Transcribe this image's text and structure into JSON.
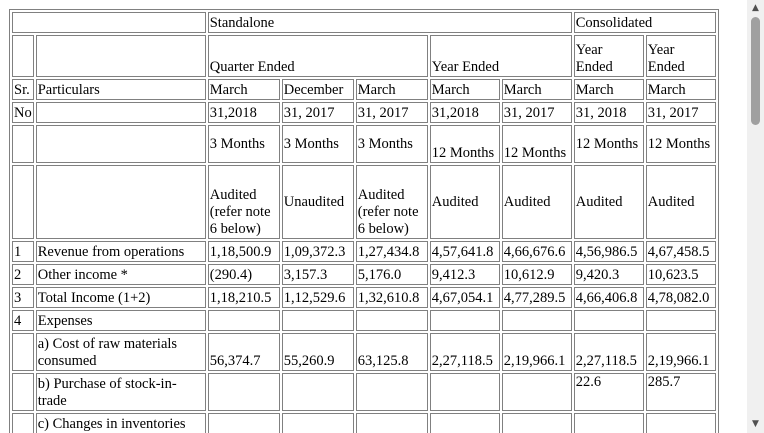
{
  "header": {
    "standalone": "Standalone",
    "consolidated": "Consolidated",
    "quarter_ended": "Quarter Ended",
    "year_ended": "Year Ended",
    "cons_year_ended_1": "Year Ended",
    "cons_year_ended_2": "Year Ended",
    "sr_1": "Sr.",
    "sr_2": "No",
    "particulars": "Particulars",
    "month": [
      "March",
      "December",
      "March",
      "March",
      "March",
      "March",
      "March"
    ],
    "date": [
      "31,2018",
      "31, 2017",
      "31, 2017",
      "31,2018",
      "31, 2017",
      "31, 2018",
      "31, 2017"
    ],
    "period": [
      "3 Months",
      "3 Months",
      "3 Months",
      "12 Months",
      "12 Months",
      "12 Months",
      "12 Months"
    ],
    "audit": [
      "Audited (refer note 6 below)",
      "Unaudited",
      "Audited (refer note 6 below)",
      "Audited",
      "Audited",
      "Audited",
      "Audited"
    ]
  },
  "rows": [
    {
      "sr": "1",
      "label": "Revenue from operations",
      "values": [
        "1,18,500.9",
        "1,09,372.3",
        "1,27,434.8",
        "4,57,641.8",
        "4,66,676.6",
        "4,56,986.5",
        "4,67,458.5"
      ]
    },
    {
      "sr": "2",
      "label": "Other income *",
      "values": [
        "(290.4)",
        "3,157.3",
        "5,176.0",
        "9,412.3",
        "10,612.9",
        "9,420.3",
        "10,623.5"
      ]
    },
    {
      "sr": "3",
      "label": "Total Income (1+2)",
      "values": [
        "1,18,210.5",
        "1,12,529.6",
        "1,32,610.8",
        "4,67,054.1",
        "4,77,289.5",
        "4,66,406.8",
        "4,78,082.0"
      ]
    },
    {
      "sr": "4",
      "label": "Expenses",
      "values": [
        "",
        "",
        "",
        "",
        "",
        "",
        ""
      ]
    },
    {
      "sr": "",
      "label": "a) Cost of raw materials consumed",
      "values": [
        "56,374.7",
        "55,260.9",
        "63,125.8",
        "2,27,118.5",
        "2,19,966.1",
        "2,27,118.5",
        "2,19,966.1"
      ]
    },
    {
      "sr": "",
      "label": "b) Purchase of stock-in-trade",
      "values": [
        "",
        "",
        "",
        "",
        "",
        "22.6",
        "285.7"
      ]
    },
    {
      "sr": "",
      "label": "c) Changes in inventories",
      "values": [
        "",
        "",
        "",
        "",
        "",
        "",
        ""
      ]
    }
  ]
}
